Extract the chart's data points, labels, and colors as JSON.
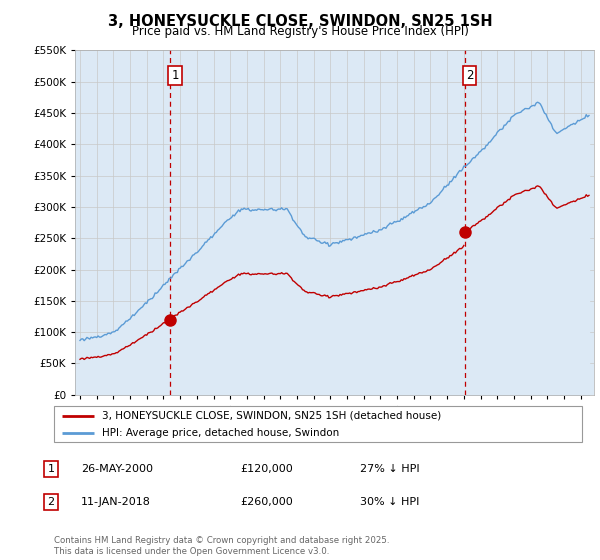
{
  "title": "3, HONEYSUCKLE CLOSE, SWINDON, SN25 1SH",
  "subtitle": "Price paid vs. HM Land Registry's House Price Index (HPI)",
  "legend_line1": "3, HONEYSUCKLE CLOSE, SWINDON, SN25 1SH (detached house)",
  "legend_line2": "HPI: Average price, detached house, Swindon",
  "annotation1_date": "26-MAY-2000",
  "annotation1_price": "£120,000",
  "annotation1_hpi": "27% ↓ HPI",
  "annotation1_year": 2000.4,
  "annotation1_value": 120000,
  "annotation2_date": "11-JAN-2018",
  "annotation2_price": "£260,000",
  "annotation2_hpi": "30% ↓ HPI",
  "annotation2_year": 2018.04,
  "annotation2_value": 260000,
  "hpi_color": "#5b9bd5",
  "hpi_fill_color": "#dce9f5",
  "price_color": "#c00000",
  "vline_color": "#c00000",
  "ylim": [
    0,
    550000
  ],
  "yticks": [
    0,
    50000,
    100000,
    150000,
    200000,
    250000,
    300000,
    350000,
    400000,
    450000,
    500000,
    550000
  ],
  "footer": "Contains HM Land Registry data © Crown copyright and database right 2025.\nThis data is licensed under the Open Government Licence v3.0.",
  "background_color": "#ffffff",
  "grid_color": "#c8c8c8"
}
